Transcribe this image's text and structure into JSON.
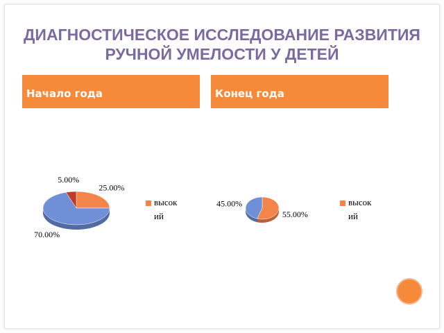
{
  "title": "ДИАГНОСТИЧЕСКОЕ ИССЛЕДОВАНИЕ РАЗВИТИЯ РУЧНОЙ УМЕЛОСТИ У ДЕТЕЙ",
  "chart_data": [
    {
      "type": "pie",
      "title": "Начало года",
      "categories": [
        "высокий",
        null,
        null
      ],
      "values": [
        25,
        70,
        5
      ],
      "value_labels": [
        "25.00%",
        "70.00%",
        "5.00%"
      ],
      "colors": [
        "#f4854a",
        "#6f8fd6",
        "#c0392b"
      ]
    },
    {
      "type": "pie",
      "title": "Конец года",
      "categories": [
        "высокий",
        null
      ],
      "values": [
        55,
        45
      ],
      "value_labels": [
        "55.00%",
        "45.00%"
      ],
      "colors": [
        "#f4854a",
        "#6f8fd6"
      ]
    }
  ]
}
